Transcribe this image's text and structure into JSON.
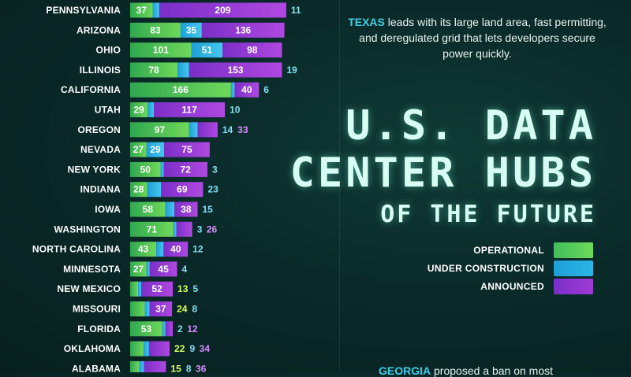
{
  "intro": {
    "highlight": "TEXAS",
    "text": "leads with its large land area, fast permitting, and deregulated grid that lets developers secure power quickly."
  },
  "title": {
    "line1": "U.S. DATA",
    "line2": "CENTER HUBS",
    "line3": "OF THE FUTURE"
  },
  "legend": {
    "operational": "OPERATIONAL",
    "under_construction": "UNDER CONSTRUCTION",
    "announced": "ANNOUNCED"
  },
  "colors": {
    "operational": "#3fbf5a",
    "under_construction": "#2bb6e6",
    "announced": "#a03ad6",
    "label_operational": "#d8ff5a",
    "label_under_construction": "#7fe0f2",
    "label_announced": "#d68cff"
  },
  "footer": {
    "highlight": "GEORGIA",
    "text": "proposed a ban on most"
  },
  "chart_data": {
    "type": "bar",
    "orientation": "horizontal",
    "stacked": true,
    "categories": [
      "PENNSYLVANIA",
      "ARIZONA",
      "OHIO",
      "ILLINOIS",
      "CALIFORNIA",
      "UTAH",
      "OREGON",
      "NEVADA",
      "NEW YORK",
      "INDIANA",
      "IOWA",
      "WASHINGTON",
      "NORTH CAROLINA",
      "MINNESOTA",
      "NEW MEXICO",
      "MISSOURI",
      "FLORIDA",
      "OKLAHOMA",
      "ALABAMA"
    ],
    "series": [
      {
        "name": "OPERATIONAL",
        "values": [
          37,
          83,
          101,
          78,
          166,
          29,
          97,
          27,
          50,
          28,
          58,
          71,
          43,
          27,
          13,
          24,
          53,
          22,
          15
        ]
      },
      {
        "name": "UNDER CONSTRUCTION",
        "values": [
          11,
          35,
          51,
          19,
          6,
          10,
          14,
          29,
          3,
          23,
          15,
          3,
          12,
          4,
          5,
          8,
          2,
          9,
          8
        ]
      },
      {
        "name": "ANNOUNCED",
        "values": [
          209,
          136,
          98,
          153,
          40,
          117,
          33,
          75,
          72,
          69,
          38,
          26,
          40,
          45,
          52,
          37,
          12,
          34,
          36
        ]
      }
    ]
  }
}
